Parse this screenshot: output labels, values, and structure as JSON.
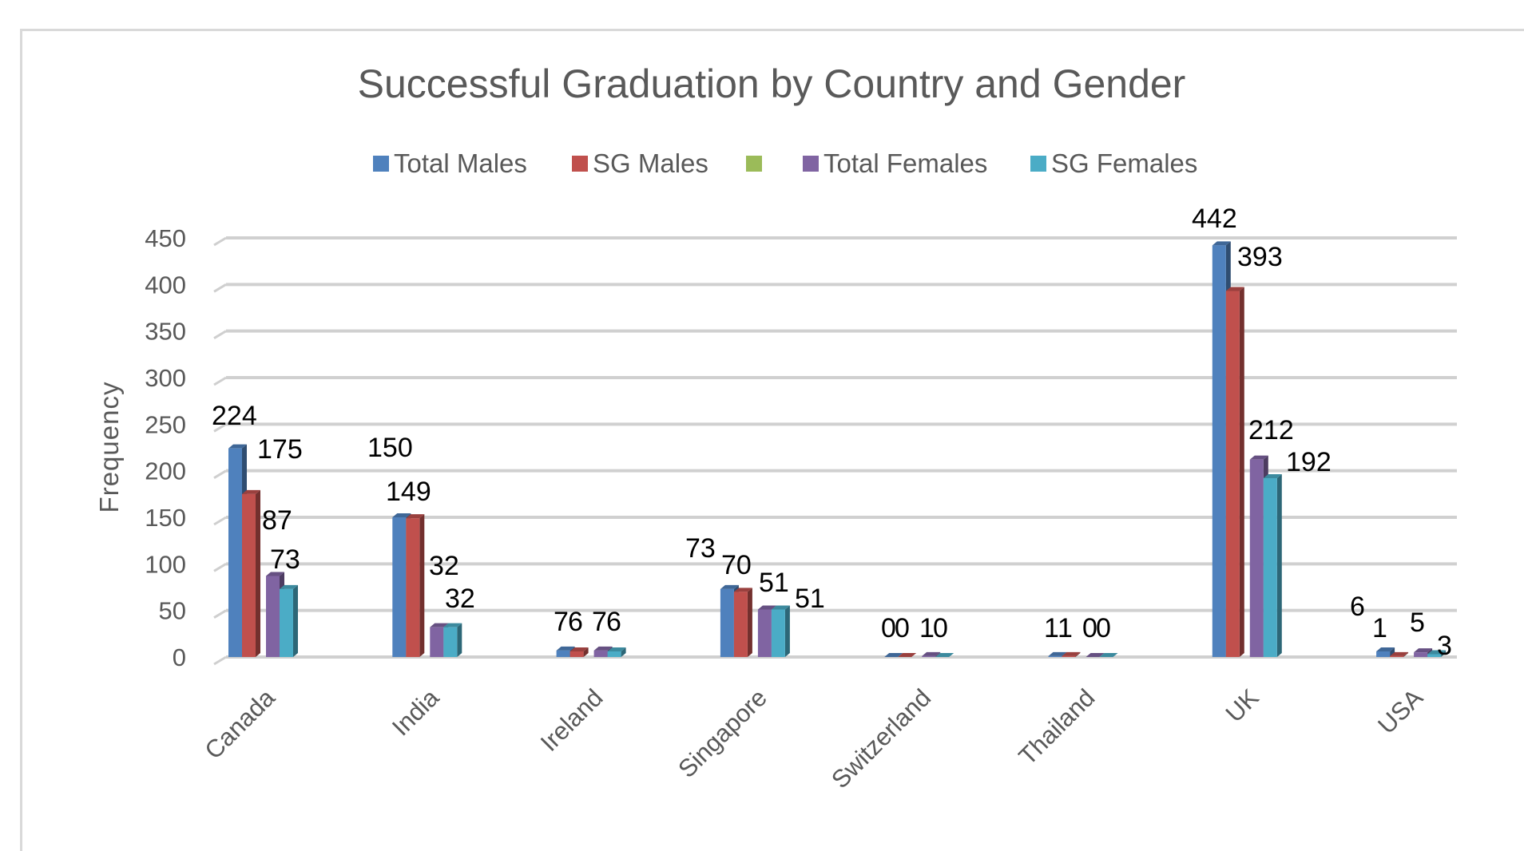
{
  "chart_data": {
    "type": "bar",
    "style": "3d-clustered-column",
    "title": "Successful Graduation by Country and Gender",
    "xlabel": "",
    "ylabel": "Frequency",
    "ylim": [
      0,
      450
    ],
    "yticks": [
      "0",
      "50",
      "100",
      "150",
      "200",
      "250",
      "300",
      "350",
      "400",
      "450"
    ],
    "grid": true,
    "legend_position": "top",
    "categories": [
      "Canada",
      "India",
      "Ireland",
      "Singapore",
      "Switzerland",
      "Thailand",
      "UK",
      "USA"
    ],
    "series": [
      {
        "name": "Total Males",
        "color": "#4f81bd",
        "values": [
          224,
          150,
          7,
          73,
          0,
          1,
          442,
          6
        ]
      },
      {
        "name": "SG Males",
        "color": "#c0504d",
        "values": [
          175,
          149,
          6,
          70,
          0,
          1,
          393,
          1
        ]
      },
      {
        "name": "",
        "color": "#9bbb59",
        "values": [
          null,
          null,
          null,
          null,
          null,
          null,
          null,
          null
        ]
      },
      {
        "name": "Total Females",
        "color": "#8064a2",
        "values": [
          87,
          32,
          7,
          51,
          1,
          0,
          212,
          5
        ]
      },
      {
        "name": "SG Females",
        "color": "#4bacc6",
        "values": [
          73,
          32,
          6,
          51,
          0,
          0,
          192,
          3
        ]
      }
    ]
  }
}
